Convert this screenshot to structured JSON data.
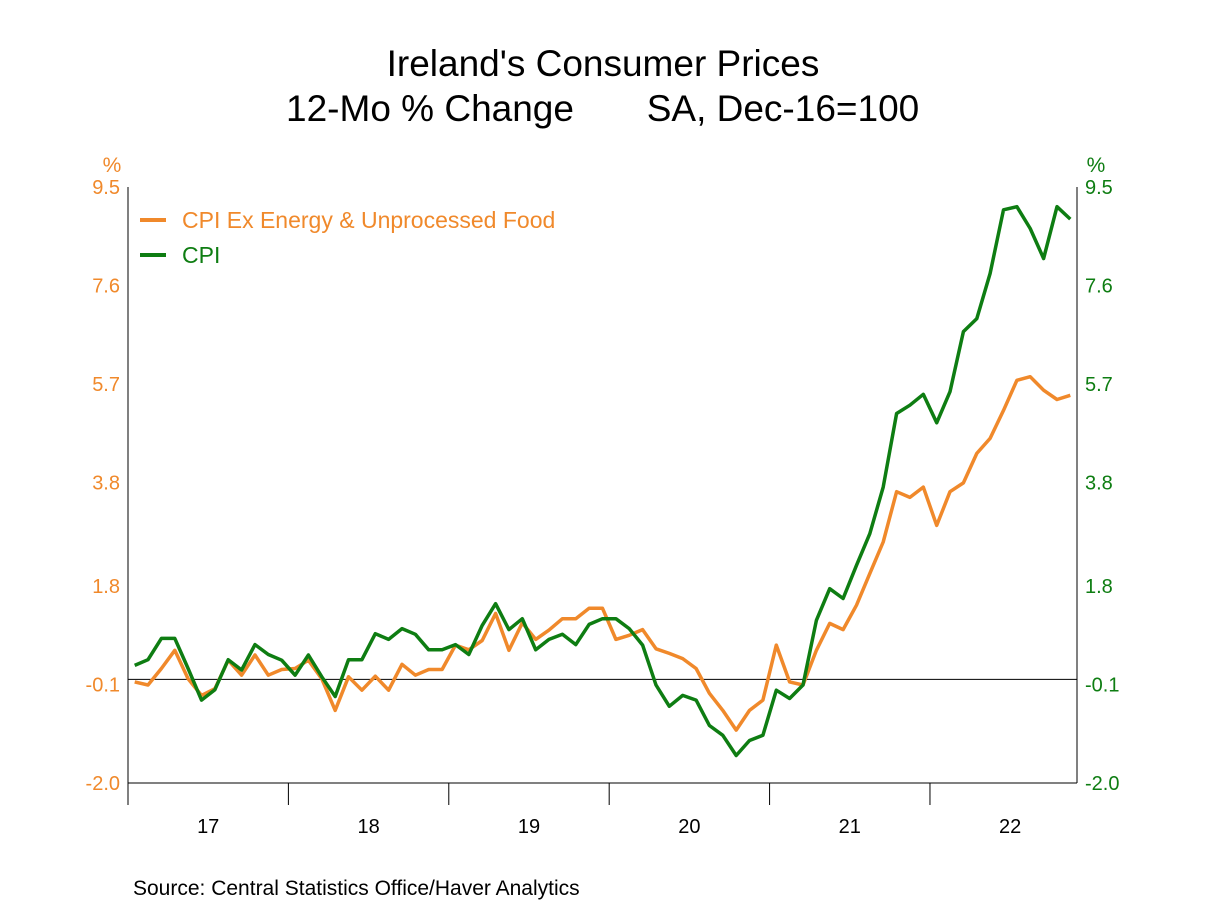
{
  "chart_data": {
    "type": "line",
    "title": "Ireland's Consumer Prices",
    "subtitle_left": "12-Mo % Change",
    "subtitle_right": "SA, Dec-16=100",
    "left_unit": "%",
    "right_unit": "%",
    "ylim": [
      -2.0,
      9.5
    ],
    "y_ticks": [
      -2.0,
      -0.1,
      1.8,
      3.8,
      5.7,
      7.6,
      9.5
    ],
    "y_tick_labels": [
      "-2.0",
      "-0.1",
      "1.8",
      "3.8",
      "5.7",
      "7.6",
      "9.5"
    ],
    "x_start": "2017-01",
    "frequency": "monthly",
    "x_end": "2022-11",
    "x_tick_labels": [
      "17",
      "18",
      "19",
      "20",
      "21",
      "22"
    ],
    "reference_line": 0,
    "grid": false,
    "legend_placement": "top-left",
    "series": [
      {
        "name": "CPI Ex Energy & Unprocessed Food",
        "color": "#F0892B",
        "axis": "left",
        "values": [
          -0.05,
          -0.11,
          0.21,
          0.56,
          0.01,
          -0.31,
          -0.18,
          0.37,
          0.08,
          0.47,
          0.08,
          0.19,
          0.21,
          0.37,
          0.01,
          -0.6,
          0.05,
          -0.21,
          0.06,
          -0.21,
          0.29,
          0.08,
          0.19,
          0.19,
          0.66,
          0.57,
          0.75,
          1.27,
          0.56,
          1.09,
          0.77,
          0.95,
          1.17,
          1.17,
          1.37,
          1.37,
          0.77,
          0.85,
          0.96,
          0.59,
          0.5,
          0.4,
          0.21,
          -0.27,
          -0.6,
          -0.98,
          -0.6,
          -0.4,
          0.66,
          -0.05,
          -0.11,
          0.56,
          1.08,
          0.96,
          1.43,
          2.04,
          2.65,
          3.62,
          3.51,
          3.71,
          2.97,
          3.62,
          3.79,
          4.36,
          4.65,
          5.19,
          5.77,
          5.84,
          5.58,
          5.4,
          5.48
        ]
      },
      {
        "name": "CPI",
        "color": "#0E7D12",
        "axis": "right",
        "values": [
          0.27,
          0.38,
          0.79,
          0.79,
          0.21,
          -0.4,
          -0.2,
          0.38,
          0.18,
          0.67,
          0.48,
          0.37,
          0.08,
          0.47,
          0.05,
          -0.33,
          0.38,
          0.38,
          0.88,
          0.77,
          0.98,
          0.87,
          0.57,
          0.57,
          0.67,
          0.48,
          1.04,
          1.46,
          0.96,
          1.17,
          0.57,
          0.77,
          0.87,
          0.67,
          1.06,
          1.17,
          1.17,
          0.98,
          0.66,
          -0.11,
          -0.52,
          -0.31,
          -0.4,
          -0.89,
          -1.08,
          -1.47,
          -1.18,
          -1.08,
          -0.21,
          -0.37,
          -0.11,
          1.14,
          1.75,
          1.56,
          2.2,
          2.81,
          3.71,
          5.13,
          5.29,
          5.5,
          4.95,
          5.55,
          6.71,
          6.96,
          7.83,
          9.06,
          9.12,
          8.7,
          8.12,
          9.12,
          8.88
        ]
      }
    ],
    "source": "Source:  Central Statistics Office/Haver Analytics"
  }
}
